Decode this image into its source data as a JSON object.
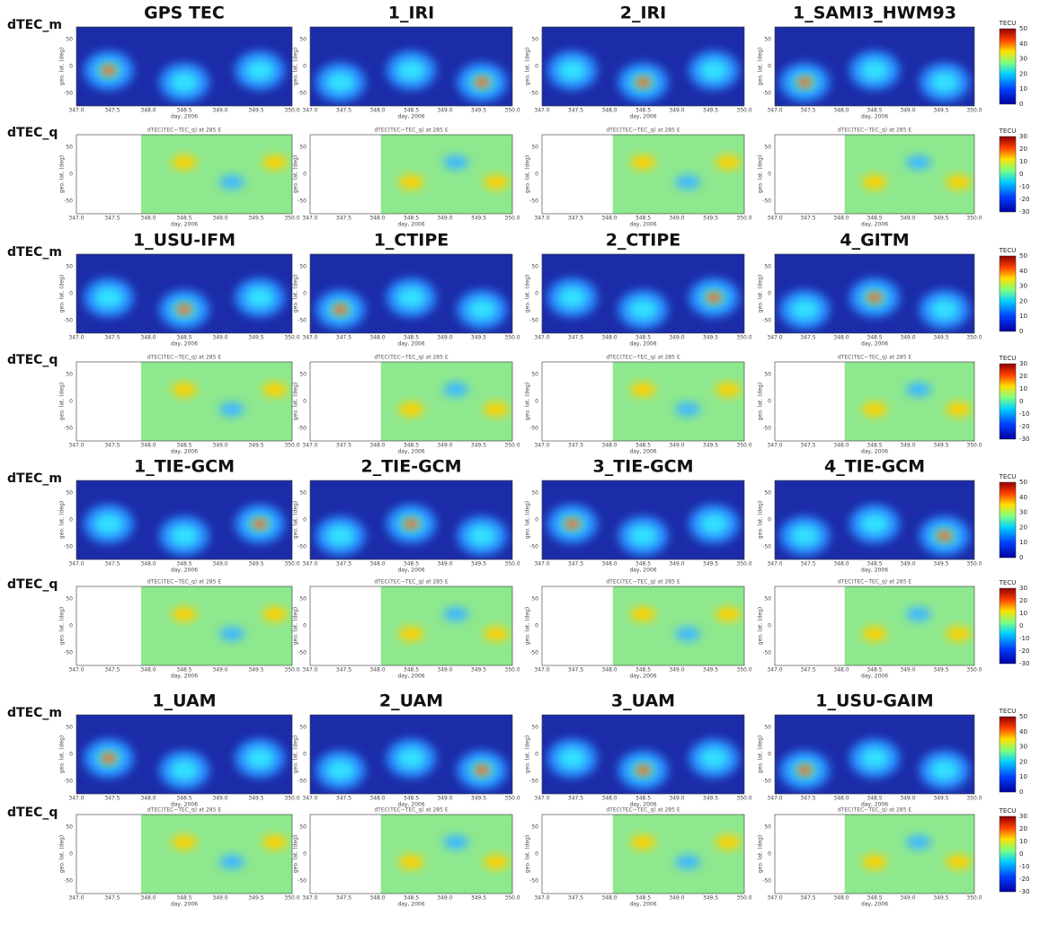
{
  "rows": [
    {
      "label": "dTEC_m",
      "titles": [
        "GPS TEC",
        "1_IRI",
        "2_IRI",
        "1_SAMI3_HWM93"
      ],
      "colorbar": {
        "unit": "TECU",
        "ticks": [
          "50",
          "40",
          "30",
          "20",
          "10",
          "0"
        ]
      }
    },
    {
      "label": "dTEC_q",
      "subtitle": "dTEC(TEC−TEC_q) at 285 E",
      "colorbar": {
        "unit": "TECU",
        "ticks": [
          "30",
          "20",
          "10",
          "0",
          "-10",
          "-20",
          "-30"
        ]
      }
    },
    {
      "label": "dTEC_m",
      "titles": [
        "1_USU-IFM",
        "1_CTIPE",
        "2_CTIPE",
        "4_GITM"
      ],
      "colorbar": {
        "unit": "TECU",
        "ticks": [
          "50",
          "40",
          "30",
          "20",
          "10",
          "0"
        ]
      }
    },
    {
      "label": "dTEC_q",
      "subtitle": "dTEC(TEC−TEC_q) at 285 E",
      "colorbar": {
        "unit": "TECU",
        "ticks": [
          "30",
          "20",
          "10",
          "0",
          "-10",
          "-20",
          "-30"
        ]
      }
    },
    {
      "label": "dTEC_m",
      "titles": [
        "1_TIE-GCM",
        "2_TIE-GCM",
        "3_TIE-GCM",
        "4_TIE-GCM"
      ],
      "colorbar": {
        "unit": "TECU",
        "ticks": [
          "50",
          "40",
          "30",
          "20",
          "10",
          "0"
        ]
      }
    },
    {
      "label": "dTEC_q",
      "subtitle": "dTEC(TEC−TEC_q) at 285 E",
      "colorbar": {
        "unit": "TECU",
        "ticks": [
          "30",
          "20",
          "10",
          "0",
          "-10",
          "-20",
          "-30"
        ]
      }
    },
    {
      "label": "dTEC_m",
      "titles": [
        "1_UAM",
        "2_UAM",
        "3_UAM",
        "1_USU-GAIM"
      ],
      "colorbar": {
        "unit": "TECU",
        "ticks": [
          "50",
          "40",
          "30",
          "20",
          "10",
          "0"
        ]
      }
    },
    {
      "label": "dTEC_q",
      "subtitle": "dTEC(TEC−TEC_q) at 285 E",
      "colorbar": {
        "unit": "TECU",
        "ticks": [
          "30",
          "20",
          "10",
          "0",
          "-10",
          "-20",
          "-30"
        ]
      }
    }
  ],
  "axes": {
    "xticks": [
      "347.0",
      "347.5",
      "348.0",
      "348.5",
      "349.0",
      "349.5",
      "350.0"
    ],
    "xlabel": "day, 2006",
    "ylabel": "geo. lat. (deg)",
    "yticks": [
      "50",
      "0",
      "-50"
    ]
  }
}
